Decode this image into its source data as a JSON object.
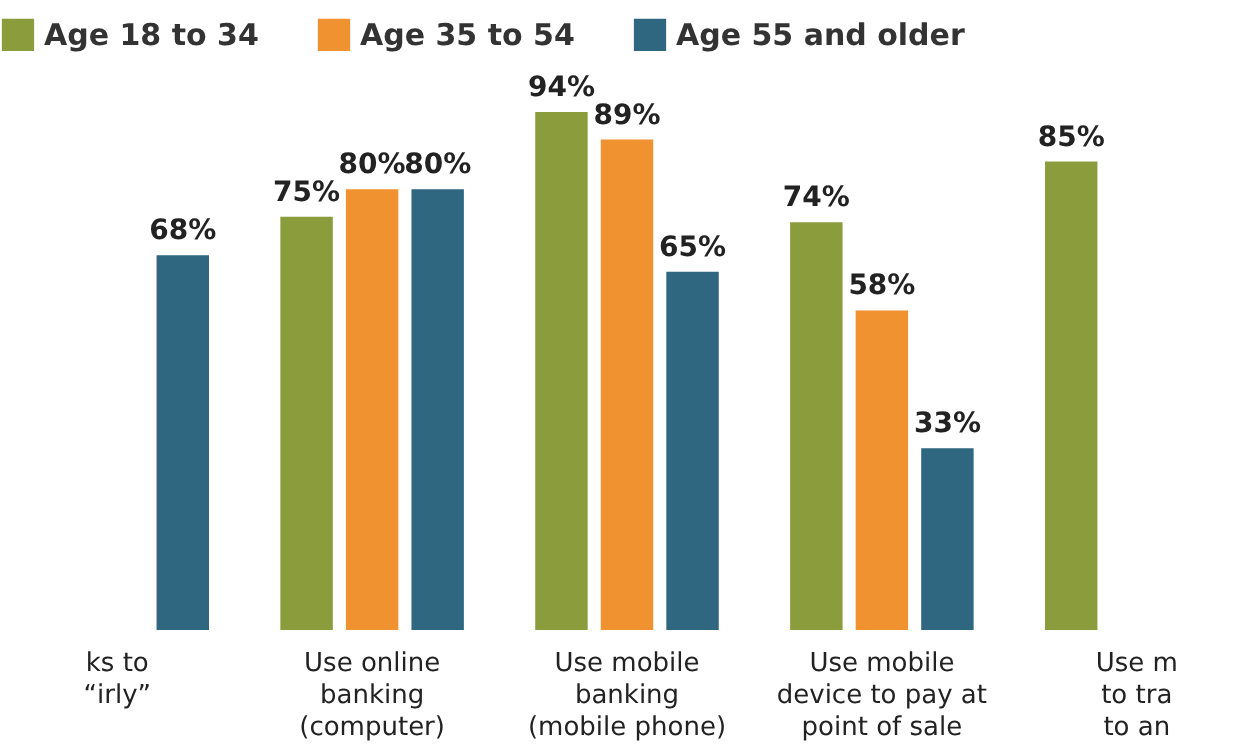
{
  "chart_data": {
    "type": "bar",
    "categories": [
      "ks to\n“irly”",
      "Use online\nbanking\n(computer)",
      "Use mobile\nbanking\n(mobile phone)",
      "Use mobile\ndevice to pay at\npoint of sale",
      "Use m\nto tra\nto an"
    ],
    "series": [
      {
        "name": "Age 18 to 34",
        "color": "#8a9c3c",
        "values": [
          null,
          75,
          94,
          74,
          85
        ],
        "value_labels": [
          null,
          "75%",
          "94%",
          "74%",
          "85%"
        ]
      },
      {
        "name": "Age 35 to 54",
        "color": "#f0922f",
        "values": [
          null,
          80,
          89,
          58,
          null
        ],
        "value_labels": [
          null,
          "80%",
          "89%",
          "58%",
          null
        ]
      },
      {
        "name": "Age 55 and older",
        "color": "#2f6680",
        "values": [
          68,
          80,
          65,
          33,
          null
        ],
        "value_labels": [
          "68%",
          "80%",
          "65%",
          "33%",
          null
        ]
      }
    ],
    "legend": "top",
    "grid": false,
    "tick_labels": "x"
  }
}
